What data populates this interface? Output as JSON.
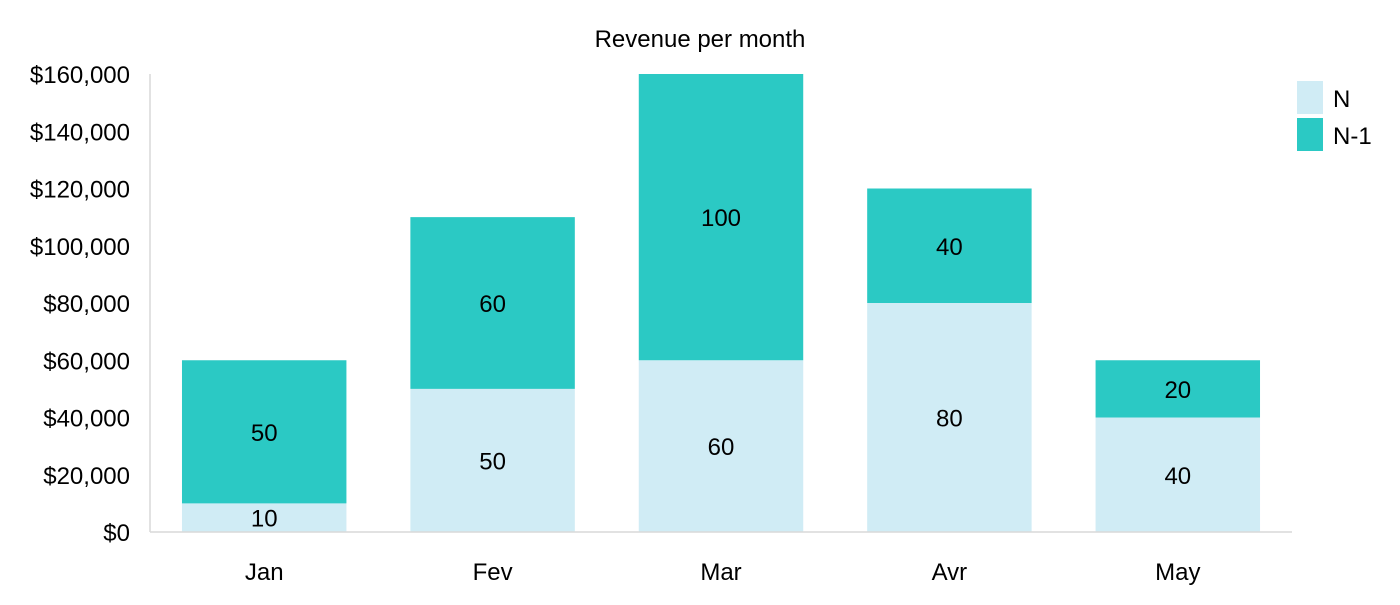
{
  "chart_data": {
    "type": "bar",
    "stacked": true,
    "title": "Revenue per month",
    "xlabel": "",
    "ylabel": "",
    "categories": [
      "Jan",
      "Fev",
      "Mar",
      "Avr",
      "May"
    ],
    "series": [
      {
        "name": "N",
        "values": [
          10000,
          50000,
          60000,
          80000,
          40000
        ],
        "labels": [
          "10",
          "50",
          "60",
          "80",
          "40"
        ],
        "color": "#d0ecf5"
      },
      {
        "name": "N-1",
        "values": [
          50000,
          60000,
          100000,
          40000,
          20000
        ],
        "labels": [
          "50",
          "60",
          "100",
          "40",
          "20"
        ],
        "color": "#2bc9c4"
      }
    ],
    "ylim": [
      0,
      160000
    ],
    "yticks": [
      0,
      20000,
      40000,
      60000,
      80000,
      100000,
      120000,
      140000,
      160000
    ],
    "ytick_labels": [
      "$0",
      "$20,000",
      "$40,000",
      "$60,000",
      "$80,000",
      "$100,000",
      "$120,000",
      "$140,000",
      "$160,000"
    ],
    "grid": false,
    "legend_position": "top-right"
  }
}
